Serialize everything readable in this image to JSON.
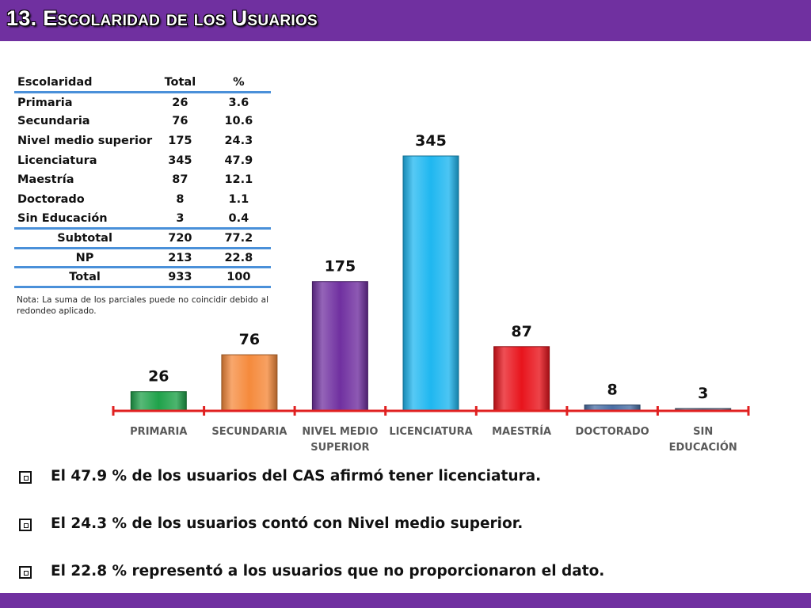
{
  "header": {
    "title": "13. Escolaridad de los Usuarios"
  },
  "table": {
    "headers": [
      "Escolaridad",
      "Total",
      "%"
    ],
    "rows": [
      [
        "Primaria",
        "26",
        "3.6"
      ],
      [
        "Secundaria",
        "76",
        "10.6"
      ],
      [
        "Nivel medio superior",
        "175",
        "24.3"
      ],
      [
        "Licenciatura",
        "345",
        "47.9"
      ],
      [
        "Maestría",
        "87",
        "12.1"
      ],
      [
        "Doctorado",
        "8",
        "1.1"
      ],
      [
        "Sin Educación",
        "3",
        "0.4"
      ]
    ],
    "subtotal": [
      "Subtotal",
      "720",
      "77.2"
    ],
    "np": [
      "NP",
      "213",
      "22.8"
    ],
    "total": [
      "Total",
      "933",
      "100"
    ],
    "note": "Nota: La suma de los parciales puede no coincidir debido al redondeo aplicado."
  },
  "chart_data": {
    "type": "bar",
    "categories": [
      [
        "PRIMARIA"
      ],
      [
        "SECUNDARIA"
      ],
      [
        "NIVEL MEDIO",
        "SUPERIOR"
      ],
      [
        "LICENCIATURA"
      ],
      [
        "MAESTRÍA"
      ],
      [
        "DOCTORADO"
      ],
      [
        "SIN",
        "EDUCACIÓN"
      ]
    ],
    "values": [
      26,
      76,
      175,
      345,
      87,
      8,
      3
    ],
    "colors": [
      "#1fa24a",
      "#f58a3c",
      "#7030a0",
      "#1fb7f0",
      "#e8141c",
      "#4a6fa5",
      "#5a6f8e"
    ],
    "axis_color": "#e02020",
    "ylim": [
      0,
      345
    ],
    "data_labels": true,
    "grid": false,
    "legend": "none"
  },
  "bullets": [
    "El 47.9 % de los usuarios del CAS afirmó tener licenciatura.",
    "El 24.3 % de los usuarios contó con Nivel medio superior.",
    "El 22.8 % representó a los usuarios que no proporcionaron el dato."
  ]
}
